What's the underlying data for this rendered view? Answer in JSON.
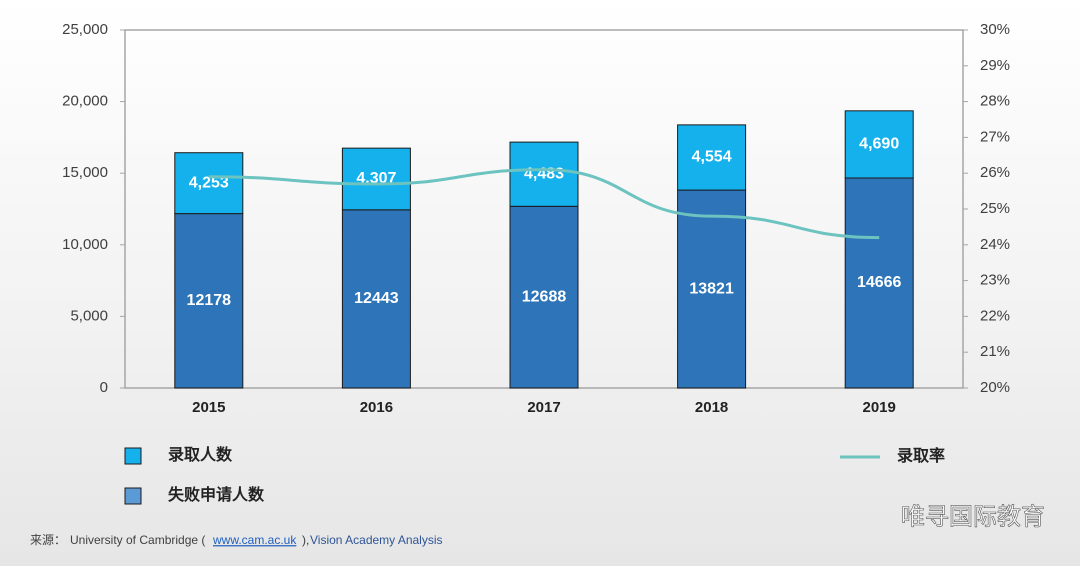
{
  "chart_data": {
    "type": "bar",
    "categories": [
      "2015",
      "2016",
      "2017",
      "2018",
      "2019"
    ],
    "stacked": true,
    "series": [
      {
        "name": "录取人数",
        "color": "#14b1ec",
        "values": [
          4253,
          4307,
          4483,
          4554,
          4690
        ],
        "value_labels": [
          "4,253",
          "4,307",
          "4,483",
          "4,554",
          "4,690"
        ]
      },
      {
        "name": "失败申请人数",
        "color": "#2e74b8",
        "legend_color": "#5b9bd5",
        "values": [
          12178,
          12443,
          12688,
          13821,
          14666
        ]
      },
      {
        "name": "录取率",
        "type": "line",
        "axis": "y2",
        "color": "#6cc3bf",
        "values": [
          25.9,
          25.7,
          26.1,
          24.8,
          24.2
        ]
      }
    ],
    "ylim": [
      0,
      25000
    ],
    "yticks": [
      0,
      {
        "value": 5000,
        "label": "5,000"
      },
      {
        "value": 10000,
        "label": "10,000"
      },
      {
        "value": 15000,
        "label": "15,000"
      },
      {
        "value": 20000,
        "label": "20,000"
      },
      {
        "value": 25000,
        "label": "25,000"
      }
    ],
    "y2lim": [
      20,
      30
    ],
    "y2ticks": [
      {
        "value": 20,
        "label": "20%"
      },
      {
        "value": 21,
        "label": "21%"
      },
      {
        "value": 22,
        "label": "22%"
      },
      {
        "value": 23,
        "label": "23%"
      },
      {
        "value": 24,
        "label": "24%"
      },
      {
        "value": 25,
        "label": "25%"
      },
      {
        "value": 26,
        "label": "26%"
      },
      {
        "value": 27,
        "label": "27%"
      },
      {
        "value": 28,
        "label": "28%"
      },
      {
        "value": 29,
        "label": "29%"
      },
      {
        "value": 30,
        "label": "30%"
      }
    ],
    "grid": false,
    "source": {
      "prefix": "来源：",
      "text": "University of Cambridge (",
      "link": "www.cam.ac.uk",
      "suffix": "), ",
      "analysis": "Vision Academy Analysis"
    },
    "watermark": "唯寻国际教育"
  }
}
